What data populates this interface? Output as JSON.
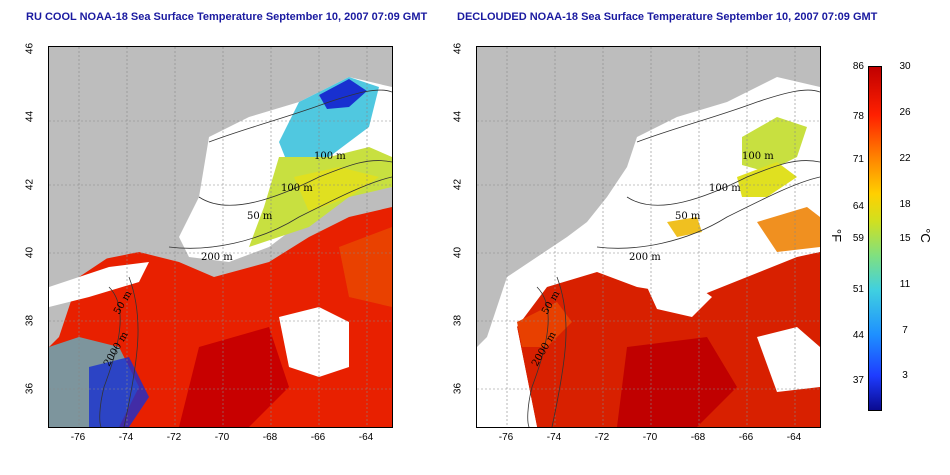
{
  "left_panel": {
    "title": "RU COOL NOAA-18 Sea Surface Temperature September 10, 2007 07:09 GMT"
  },
  "right_panel": {
    "title": "DECLOUDED NOAA-18 Sea Surface Temperature September 10, 2007 07:09 GMT"
  },
  "axes": {
    "lon_ticks": [
      "-76",
      "-74",
      "-72",
      "-70",
      "-68",
      "-66",
      "-64"
    ],
    "lat_ticks": [
      "36",
      "38",
      "40",
      "42",
      "44",
      "46"
    ]
  },
  "isobaths": [
    "100 m",
    "100 m",
    "50 m",
    "200 m",
    "50 m",
    "2000 m"
  ],
  "colorbar": {
    "unit_f": "°F",
    "unit_c": "°C",
    "fahrenheit_ticks": [
      "86",
      "78",
      "71",
      "64",
      "59",
      "51",
      "44",
      "37"
    ],
    "celsius_ticks": [
      "30",
      "26",
      "22",
      "18",
      "15",
      "11",
      "7",
      "3"
    ]
  },
  "colors": {
    "land": "#bdbdbd",
    "cloud": "#ffffff",
    "warm": "#e82000",
    "hot": "#c80000",
    "mid": "#d8e020",
    "cool": "#50c8e0",
    "cold": "#1830d0",
    "title": "#1a1aa0"
  }
}
